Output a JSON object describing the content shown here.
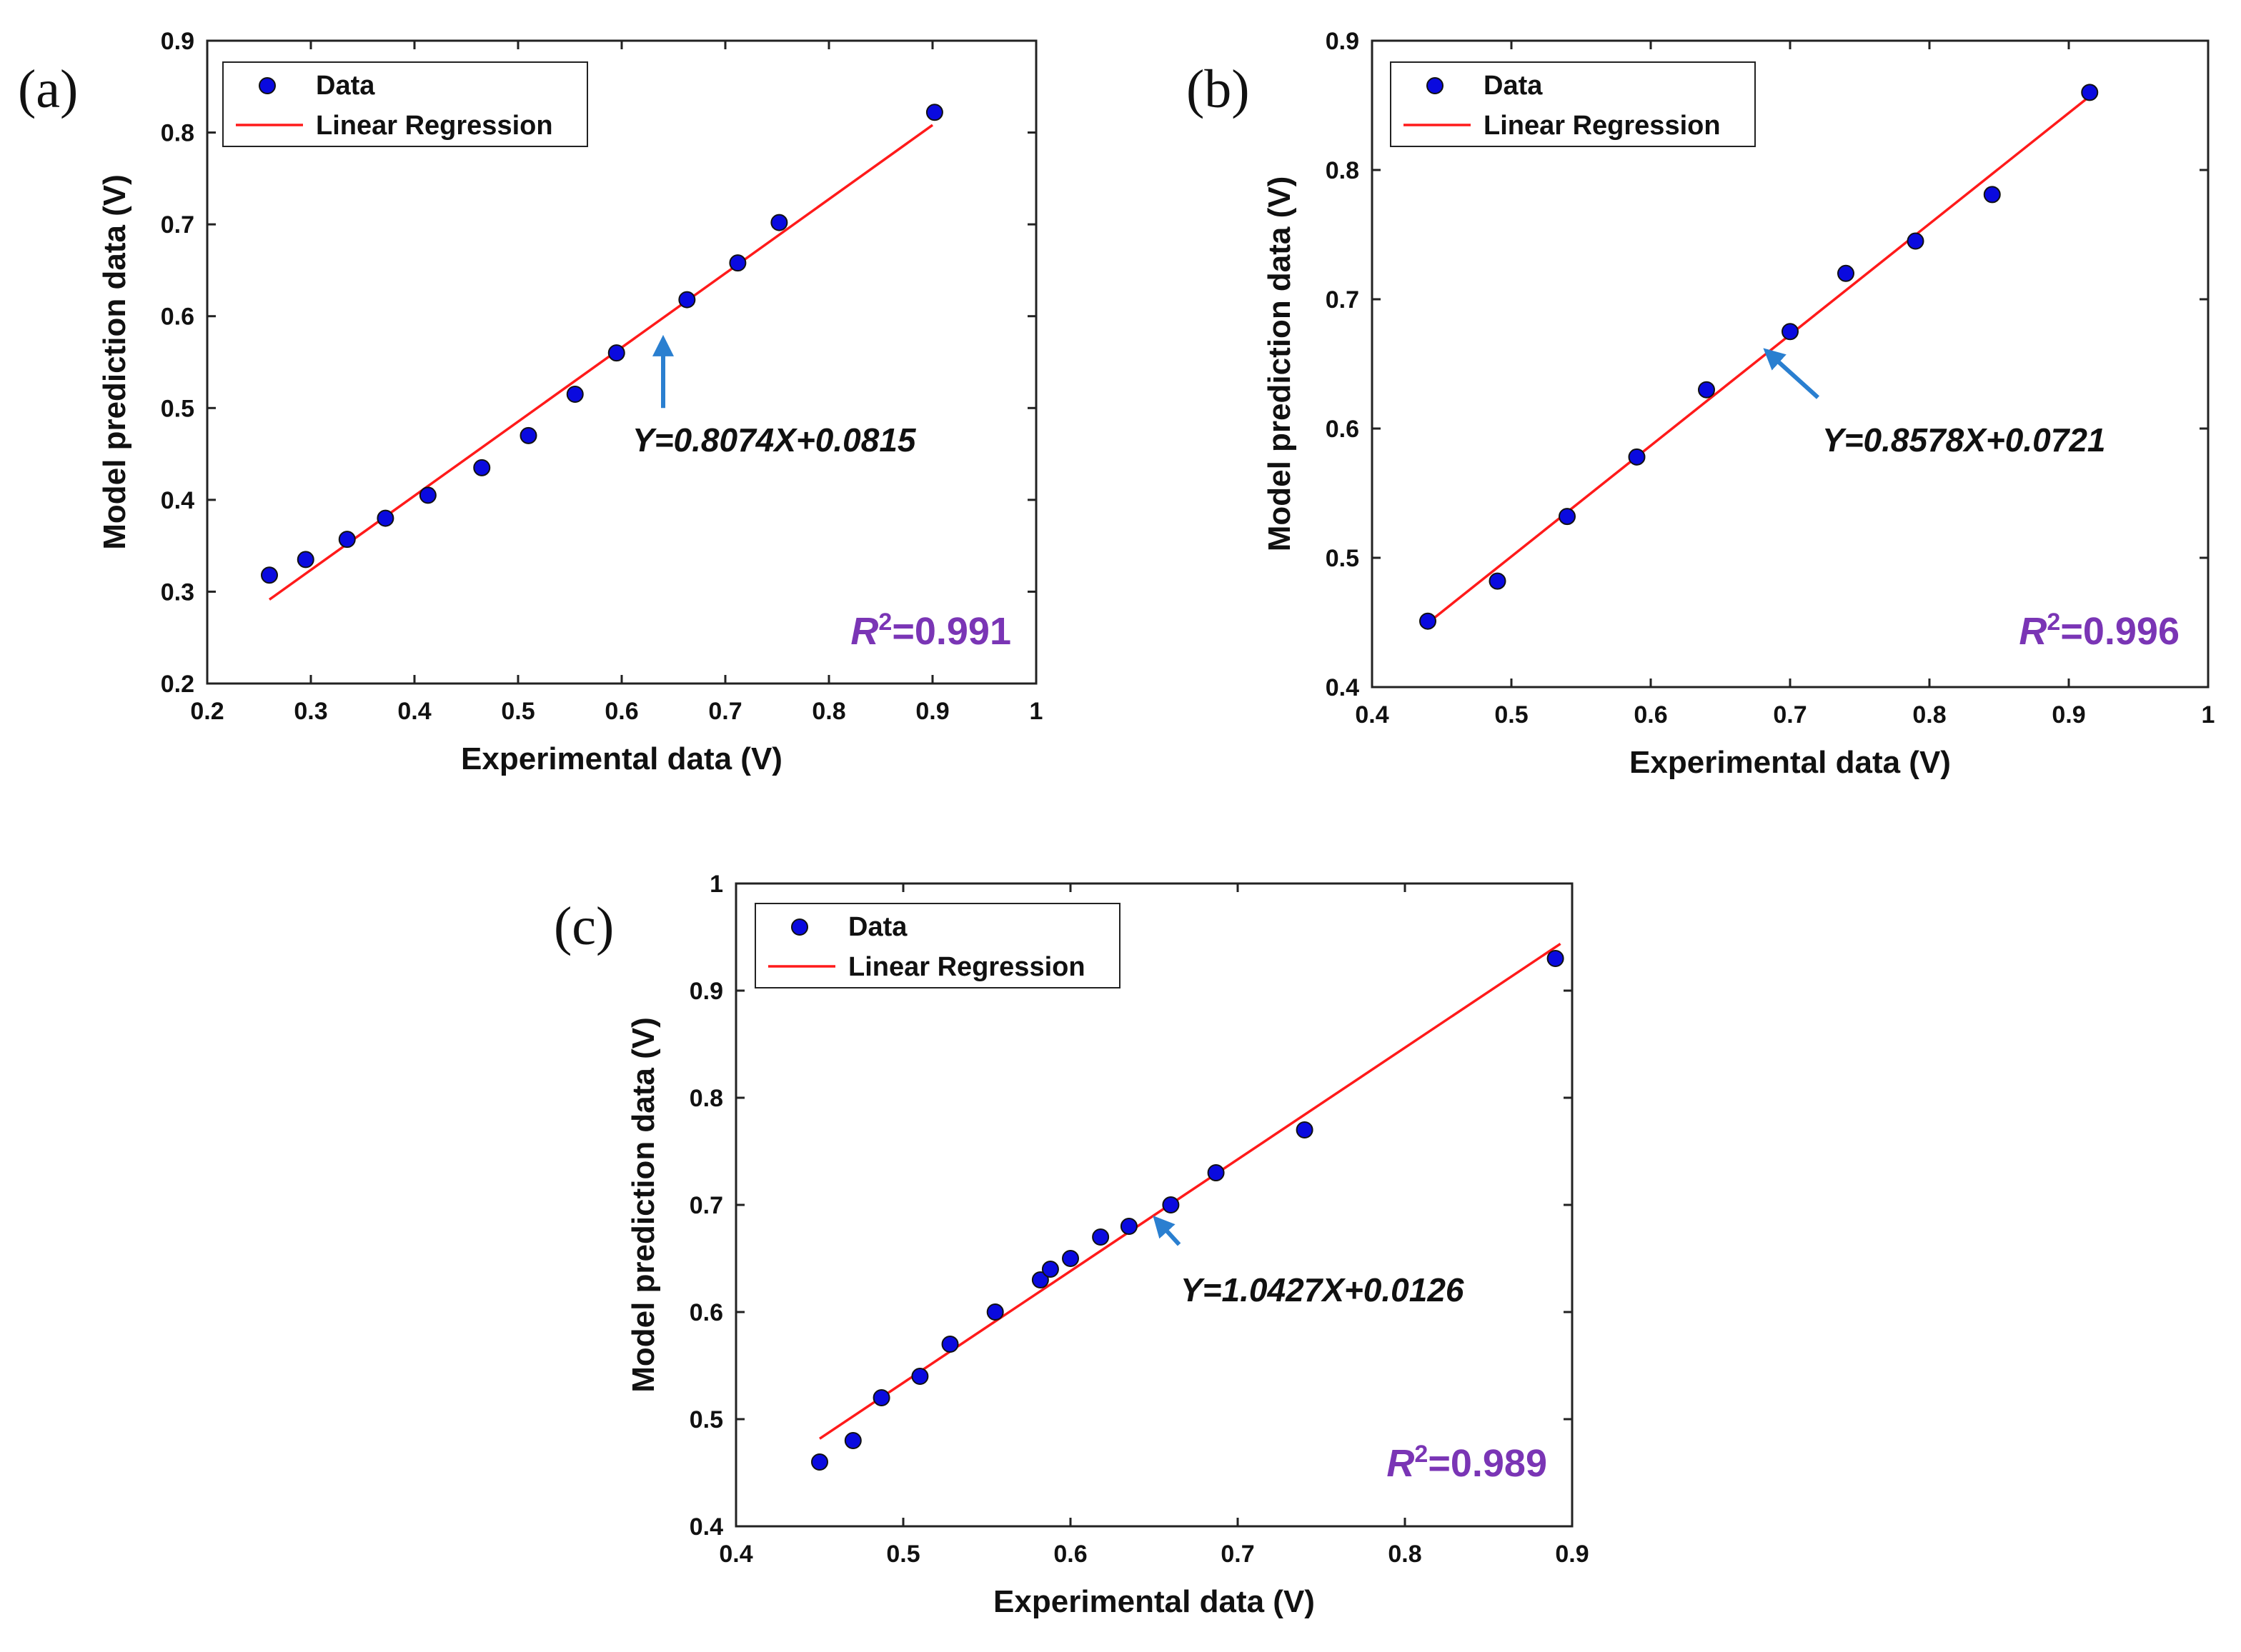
{
  "legend": {
    "data_label": "Data",
    "fit_label": "Linear Regression"
  },
  "colors": {
    "point": "#0a0adf",
    "line": "#ff1a1a",
    "arrow": "#2a7fd0",
    "r2": "#7a35b5"
  },
  "chart_data": [
    {
      "type": "scatter",
      "panel_label": "(a)",
      "xlabel": "Experimental data (V)",
      "ylabel": "Model prediction data (V)",
      "xlim": [
        0.2,
        1.0
      ],
      "ylim": [
        0.2,
        0.9
      ],
      "xticks": [
        0.2,
        0.3,
        0.4,
        0.5,
        0.6,
        0.7,
        0.8,
        0.9,
        1.0
      ],
      "xtick_labels": [
        "0.2",
        "0.3",
        "0.4",
        "0.5",
        "0.6",
        "0.7",
        "0.8",
        "0.9",
        "1"
      ],
      "yticks": [
        0.2,
        0.3,
        0.4,
        0.5,
        0.6,
        0.7,
        0.8,
        0.9
      ],
      "ytick_labels": [
        "0.2",
        "0.3",
        "0.4",
        "0.5",
        "0.6",
        "0.7",
        "0.8",
        "0.9"
      ],
      "series": [
        {
          "name": "Data",
          "x": [
            0.26,
            0.295,
            0.335,
            0.372,
            0.413,
            0.465,
            0.51,
            0.555,
            0.595,
            0.663,
            0.712,
            0.752,
            0.902
          ],
          "y": [
            0.318,
            0.335,
            0.357,
            0.38,
            0.405,
            0.435,
            0.47,
            0.515,
            0.56,
            0.618,
            0.658,
            0.702,
            0.822
          ]
        }
      ],
      "fit": {
        "name": "Linear Regression",
        "slope": 0.8074,
        "intercept": 0.0815,
        "x_range": [
          0.26,
          0.9
        ]
      },
      "equation_label": "Y=0.8074X+0.0815",
      "r2_symbol": "R",
      "r2_exponent": "2",
      "r2_value": "=0.991",
      "arrow_target": [
        0.64,
        0.575
      ],
      "arrow_tail": [
        0.64,
        0.5
      ]
    },
    {
      "type": "scatter",
      "panel_label": "(b)",
      "xlabel": "Experimental data (V)",
      "ylabel": "Model prediction data (V)",
      "xlim": [
        0.4,
        1.0
      ],
      "ylim": [
        0.4,
        0.9
      ],
      "xticks": [
        0.4,
        0.5,
        0.6,
        0.7,
        0.8,
        0.9,
        1.0
      ],
      "xtick_labels": [
        "0.4",
        "0.5",
        "0.6",
        "0.7",
        "0.8",
        "0.9",
        "1"
      ],
      "yticks": [
        0.4,
        0.5,
        0.6,
        0.7,
        0.8,
        0.9
      ],
      "ytick_labels": [
        "0.4",
        "0.5",
        "0.6",
        "0.7",
        "0.8",
        "0.9"
      ],
      "series": [
        {
          "name": "Data",
          "x": [
            0.44,
            0.49,
            0.54,
            0.59,
            0.64,
            0.7,
            0.74,
            0.79,
            0.845,
            0.915
          ],
          "y": [
            0.451,
            0.482,
            0.532,
            0.578,
            0.63,
            0.675,
            0.72,
            0.745,
            0.781,
            0.86
          ]
        }
      ],
      "fit": {
        "name": "Linear Regression",
        "slope": 0.8578,
        "intercept": 0.0721,
        "x_range": [
          0.44,
          0.915
        ]
      },
      "equation_label": "Y=0.8578X+0.0721",
      "r2_symbol": "R",
      "r2_exponent": "2",
      "r2_value": "=0.996",
      "arrow_target": [
        0.683,
        0.66
      ],
      "arrow_tail": [
        0.72,
        0.624
      ]
    },
    {
      "type": "scatter",
      "panel_label": "(c)",
      "xlabel": "Experimental data (V)",
      "ylabel": "Model prediction data (V)",
      "xlim": [
        0.4,
        0.9
      ],
      "ylim": [
        0.4,
        1.0
      ],
      "xticks": [
        0.4,
        0.5,
        0.6,
        0.7,
        0.8,
        0.9
      ],
      "xtick_labels": [
        "0.4",
        "0.5",
        "0.6",
        "0.7",
        "0.8",
        "0.9"
      ],
      "yticks": [
        0.4,
        0.5,
        0.6,
        0.7,
        0.8,
        0.9,
        1.0
      ],
      "ytick_labels": [
        "0.4",
        "0.5",
        "0.6",
        "0.7",
        "0.8",
        "0.9",
        "1"
      ],
      "series": [
        {
          "name": "Data",
          "x": [
            0.45,
            0.47,
            0.487,
            0.51,
            0.528,
            0.555,
            0.582,
            0.588,
            0.6,
            0.618,
            0.635,
            0.66,
            0.687,
            0.74,
            0.89
          ],
          "y": [
            0.46,
            0.48,
            0.52,
            0.54,
            0.57,
            0.6,
            0.63,
            0.64,
            0.65,
            0.67,
            0.68,
            0.7,
            0.73,
            0.77,
            0.93
          ]
        }
      ],
      "fit": {
        "name": "Linear Regression",
        "slope": 1.0427,
        "intercept": 0.0126,
        "x_range": [
          0.45,
          0.893
        ]
      },
      "equation_label": "Y=1.0427X+0.0126",
      "r2_symbol": "R",
      "r2_exponent": "2",
      "r2_value": "=0.989",
      "arrow_target": [
        0.651,
        0.687
      ],
      "arrow_tail": [
        0.665,
        0.663
      ]
    }
  ]
}
